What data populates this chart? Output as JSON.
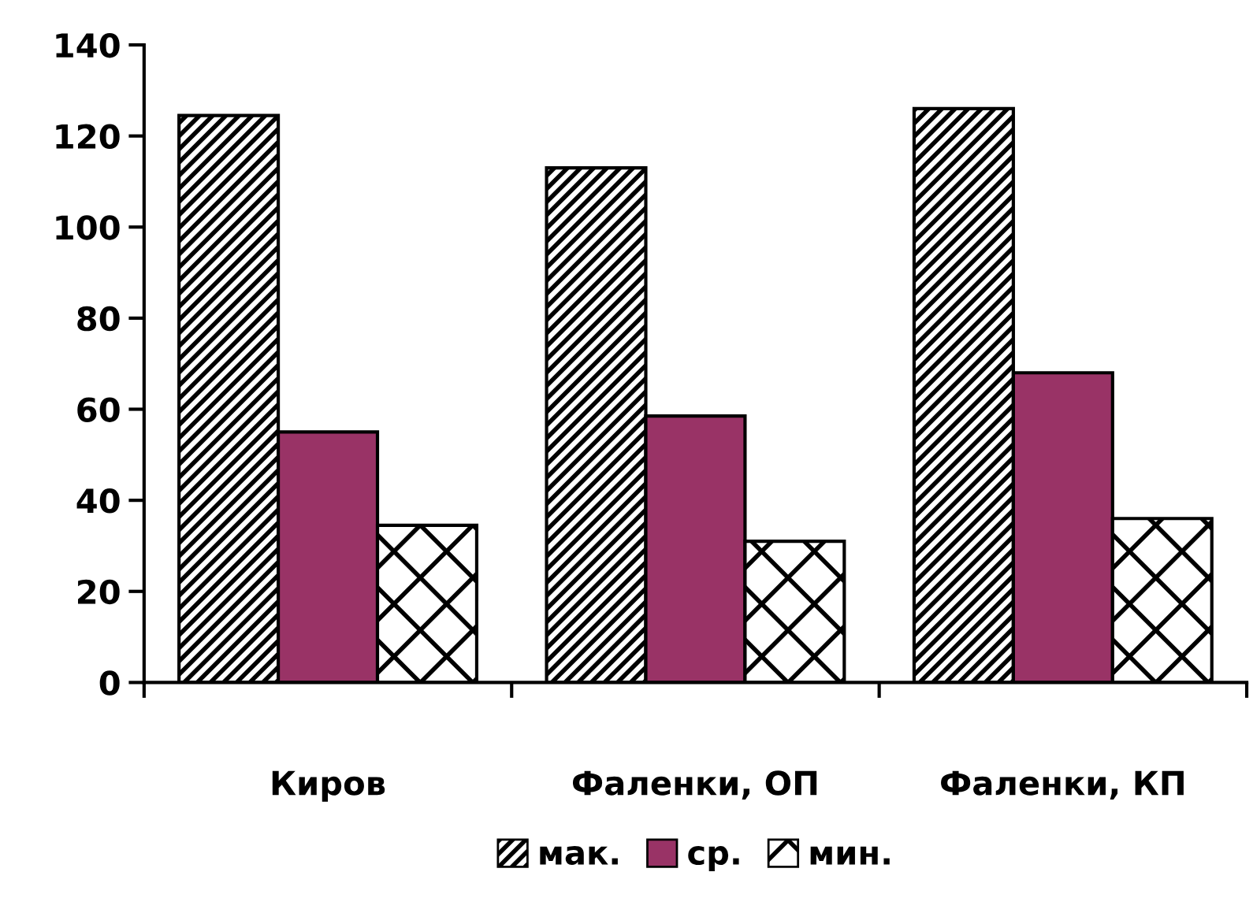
{
  "chart_data": {
    "type": "bar",
    "categories": [
      "Киров",
      "Фаленки, ОП",
      "Фаленки, КП"
    ],
    "series": [
      {
        "name": "мак.",
        "color": "#000000",
        "values": [
          124.5,
          113,
          126
        ]
      },
      {
        "name": "ср.",
        "color": "#993366",
        "values": [
          55,
          58.5,
          68
        ]
      },
      {
        "name": "мин.",
        "color": "#000000",
        "values": [
          34.5,
          31,
          36
        ]
      }
    ],
    "ylim": [
      0,
      140
    ],
    "yticks": [
      0,
      20,
      40,
      60,
      80,
      100,
      120,
      140
    ],
    "grid": false,
    "legend": "bottom"
  }
}
